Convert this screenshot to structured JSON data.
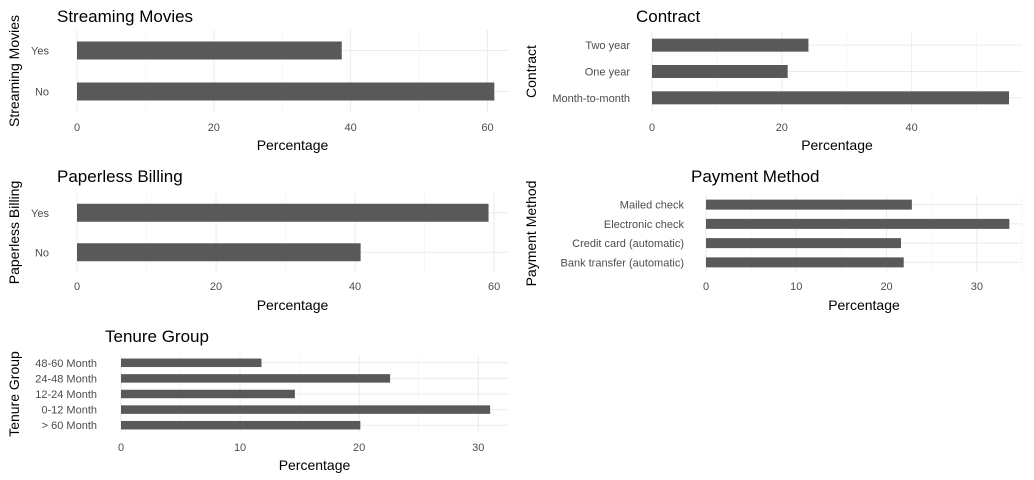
{
  "colors": {
    "bar": "#595959",
    "grid_major": "#ebebeb",
    "grid_minor": "#f2f2f2",
    "text": "#000000",
    "tick": "#4d4d4d",
    "background": "#ffffff"
  },
  "chart_data": [
    {
      "id": "streaming-movies",
      "type": "bar",
      "orientation": "horizontal",
      "title": "Streaming Movies",
      "xlabel": "Percentage",
      "ylabel": "Streaming Movies",
      "categories": [
        "No",
        "Yes"
      ],
      "values": [
        61.0,
        38.7
      ],
      "xlim": [
        0,
        63
      ],
      "xticks": [
        0,
        20,
        40,
        60
      ]
    },
    {
      "id": "contract",
      "type": "bar",
      "orientation": "horizontal",
      "title": "Contract",
      "xlabel": "Percentage",
      "ylabel": "Contract",
      "categories": [
        "Month-to-month",
        "One year",
        "Two year"
      ],
      "values": [
        55.0,
        20.9,
        24.1
      ],
      "xlim": [
        0,
        57
      ],
      "xticks": [
        0,
        20,
        40
      ]
    },
    {
      "id": "paperless-billing",
      "type": "bar",
      "orientation": "horizontal",
      "title": "Paperless Billing",
      "xlabel": "Percentage",
      "ylabel": "Paperless Billing",
      "categories": [
        "No",
        "Yes"
      ],
      "values": [
        40.8,
        59.2
      ],
      "xlim": [
        0,
        62
      ],
      "xticks": [
        0,
        20,
        40,
        60
      ]
    },
    {
      "id": "payment-method",
      "type": "bar",
      "orientation": "horizontal",
      "title": "Payment Method",
      "xlabel": "Percentage",
      "ylabel": "Payment Method",
      "categories": [
        "Bank transfer (automatic)",
        "Credit card (automatic)",
        "Electronic check",
        "Mailed check"
      ],
      "values": [
        21.9,
        21.6,
        33.6,
        22.8
      ],
      "xlim": [
        0,
        35
      ],
      "xticks": [
        0,
        10,
        20,
        30
      ]
    },
    {
      "id": "tenure-group",
      "type": "bar",
      "orientation": "horizontal",
      "title": "Tenure Group",
      "xlabel": "Percentage",
      "ylabel": "Tenure Group",
      "categories": [
        "> 60 Month",
        "0-12 Month",
        "12-24 Month",
        "24-48 Month",
        "48-60 Month"
      ],
      "values": [
        20.1,
        31.0,
        14.6,
        22.6,
        11.8
      ],
      "xlim": [
        0,
        32.5
      ],
      "xticks": [
        0,
        10,
        20,
        30
      ]
    }
  ]
}
